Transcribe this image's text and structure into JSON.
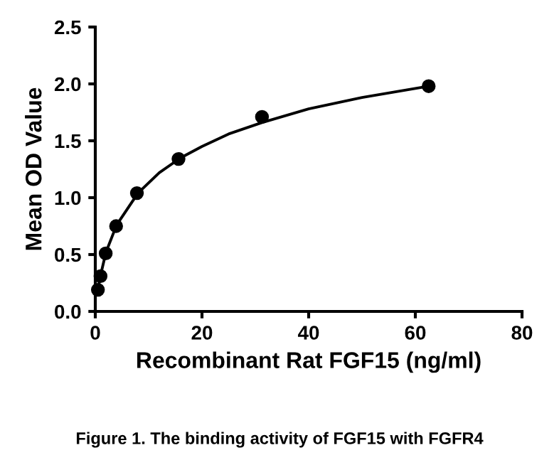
{
  "chart_data": {
    "type": "scatter",
    "xlabel": "Recombinant Rat FGF15 (ng/ml)",
    "ylabel": "Mean OD Value",
    "annotations": [
      "Figure 1. The binding activity of FGF15 with FGFR4"
    ],
    "series": [
      {
        "color": "#000000",
        "marker": "circle",
        "x": [
          0.49,
          0.98,
          1.95,
          3.9,
          7.8,
          15.6,
          31.25,
          62.5
        ],
        "values": [
          0.19,
          0.31,
          0.51,
          0.75,
          1.04,
          1.34,
          1.71,
          1.98
        ]
      },
      {
        "type": "line",
        "color": "#000000",
        "x": [
          0.49,
          1,
          2,
          4,
          8,
          12,
          16,
          20,
          25,
          31.25,
          40,
          50,
          62.5
        ],
        "values": [
          0.2,
          0.32,
          0.52,
          0.76,
          1.04,
          1.22,
          1.35,
          1.45,
          1.56,
          1.66,
          1.78,
          1.88,
          1.98
        ]
      }
    ],
    "xlim": [
      0,
      80
    ],
    "xticks": [
      0,
      20,
      40,
      60,
      80
    ],
    "ylim": [
      0,
      2.5
    ],
    "yticks": [
      {
        "value": 0,
        "label": "0.0"
      },
      {
        "value": 0.5,
        "label": "0.5"
      },
      {
        "value": 1,
        "label": "1.0"
      },
      {
        "value": 1.5,
        "label": "1.5"
      },
      {
        "value": 2,
        "label": "2.0"
      },
      {
        "value": 2.5,
        "label": "2.5"
      }
    ],
    "grid": false,
    "legend": false
  }
}
